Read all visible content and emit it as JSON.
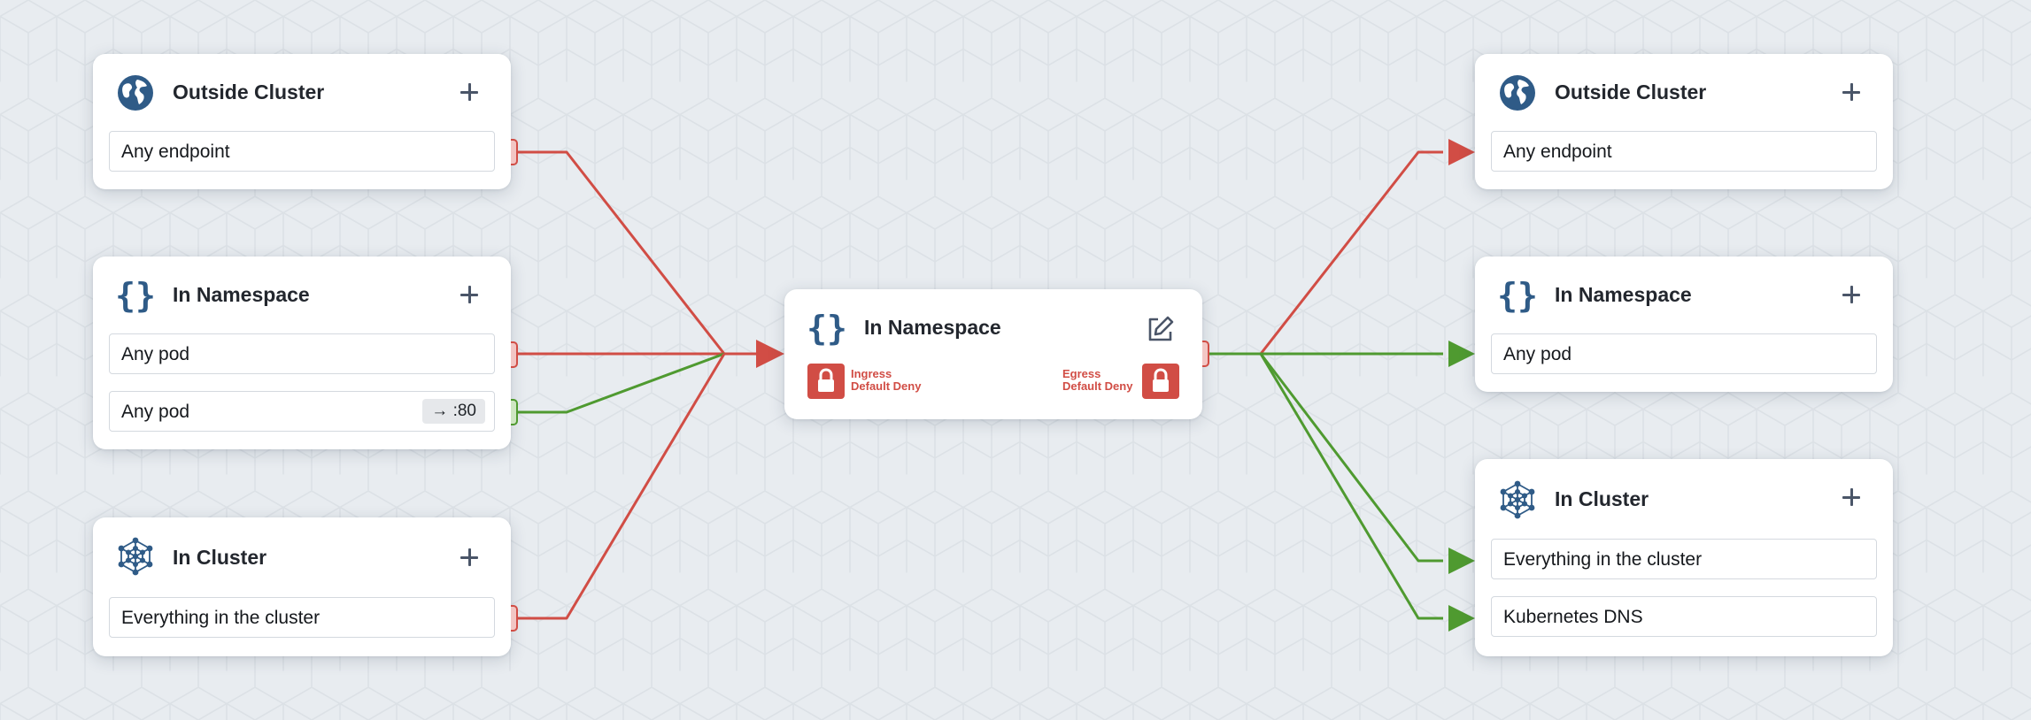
{
  "colors": {
    "deny": "#d14d45",
    "allow": "#4f9a30",
    "icon_blue": "#2f5b87",
    "background": "#e8ecf0",
    "card": "#ffffff"
  },
  "ingress": {
    "outside_cluster": {
      "title": "Outside Cluster",
      "icon": "globe-icon",
      "rules": [
        {
          "label": "Any endpoint",
          "status": "deny"
        }
      ]
    },
    "in_namespace": {
      "title": "In Namespace",
      "icon": "curly-braces-icon",
      "rules": [
        {
          "label": "Any pod",
          "status": "deny"
        },
        {
          "label": "Any pod",
          "port": "→ :80",
          "status": "allow"
        }
      ]
    },
    "in_cluster": {
      "title": "In Cluster",
      "icon": "cluster-network-icon",
      "rules": [
        {
          "label": "Everything in the cluster",
          "status": "deny"
        }
      ]
    }
  },
  "center": {
    "title": "In Namespace",
    "icon": "curly-braces-icon",
    "edit_icon": "edit-icon",
    "ingress_line1": "Ingress",
    "ingress_line2": "Default Deny",
    "egress_line1": "Egress",
    "egress_line2": "Default Deny",
    "lock_icon": "lock-icon"
  },
  "egress": {
    "outside_cluster": {
      "title": "Outside Cluster",
      "icon": "globe-icon",
      "rules": [
        {
          "label": "Any endpoint",
          "status": "deny"
        }
      ]
    },
    "in_namespace": {
      "title": "In Namespace",
      "icon": "curly-braces-icon",
      "rules": [
        {
          "label": "Any pod",
          "status": "allow"
        }
      ]
    },
    "in_cluster": {
      "title": "In Cluster",
      "icon": "cluster-network-icon",
      "rules": [
        {
          "label": "Everything in the cluster",
          "status": "allow"
        },
        {
          "label": "Kubernetes DNS",
          "status": "allow"
        }
      ]
    }
  }
}
